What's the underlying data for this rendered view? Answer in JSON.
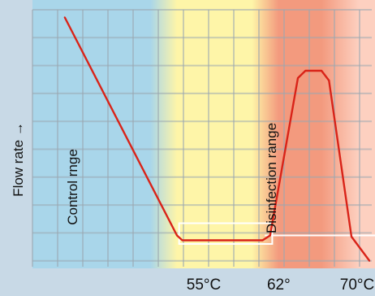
{
  "chart_data": {
    "type": "line",
    "ylabel": "Flow rate →",
    "x_tick_labels": [
      "55°C",
      "62°",
      "70°C"
    ],
    "annotations": [
      "Control rnge",
      "Disinfection range"
    ],
    "series": [
      {
        "color": "#d92318",
        "points": [
          {
            "x": 42,
            "y": 9.3
          },
          {
            "x": 52.5,
            "y": 0.35
          },
          {
            "x": 53,
            "y": 0.15
          },
          {
            "x": 60.5,
            "y": 0.15
          },
          {
            "x": 61.2,
            "y": 0.35
          },
          {
            "x": 63.8,
            "y": 6.8
          },
          {
            "x": 64.5,
            "y": 7.1
          },
          {
            "x": 66,
            "y": 7.1
          },
          {
            "x": 66.7,
            "y": 6.7
          },
          {
            "x": 68.8,
            "y": 0.3
          },
          {
            "x": 70.5,
            "y": -0.7
          }
        ]
      }
    ],
    "reference_line": {
      "y": 0.35,
      "color": "#ffffff"
    },
    "highlight_box": {
      "x": [
        52.7,
        61.4
      ],
      "y": [
        0,
        0.85
      ],
      "color": "#ffffff"
    },
    "xlim": [
      39,
      71
    ],
    "ylim": [
      -1,
      10
    ],
    "grid": true,
    "background_bands": [
      {
        "from": 39,
        "to": 50,
        "color": "#a9d6ea"
      },
      {
        "from": 52.5,
        "to": 59.5,
        "color": "#fef5a8"
      },
      {
        "from": 62,
        "to": 66,
        "color": "#f39a7e"
      },
      {
        "from": 69.5,
        "to": 71,
        "color": "#fdd0c0"
      }
    ]
  }
}
